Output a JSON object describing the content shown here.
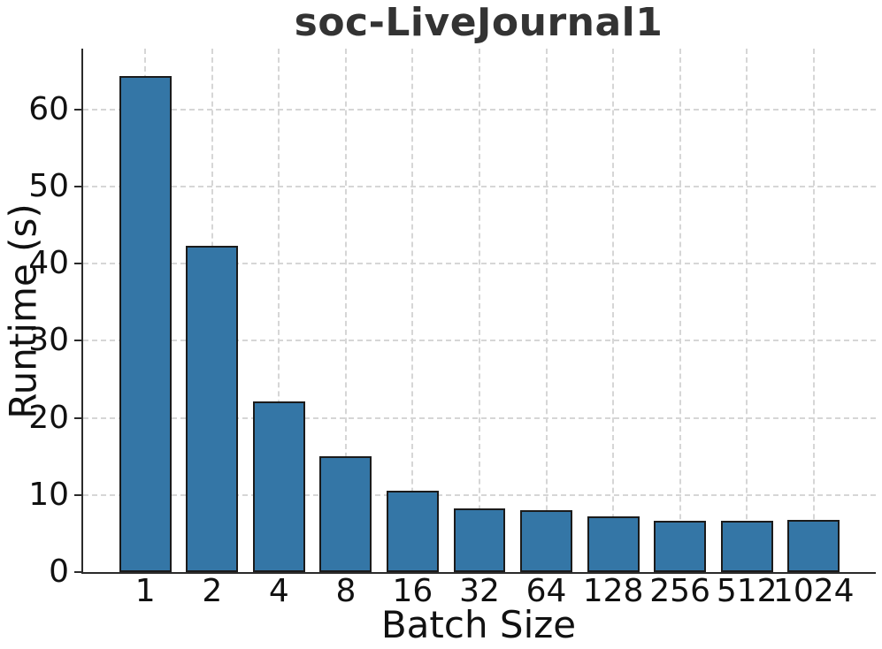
{
  "chart_data": {
    "type": "bar",
    "title": "soc-LiveJournal1",
    "xlabel": "Batch Size",
    "ylabel": "Runtime (s)",
    "categories": [
      "1",
      "2",
      "4",
      "8",
      "16",
      "32",
      "64",
      "128",
      "256",
      "512",
      "1024"
    ],
    "values": [
      64.3,
      42.3,
      22.1,
      15.0,
      10.5,
      8.3,
      8.0,
      7.2,
      6.7,
      6.7,
      6.8
    ],
    "yticks": [
      0,
      10,
      20,
      30,
      40,
      50,
      60
    ],
    "ylim": [
      0,
      67.9
    ],
    "grid": true,
    "grid_style": "dashed",
    "legend": "none",
    "bar_color": "#3476A6",
    "bar_edge_color": "#1b1b1b",
    "axis_color": "#2b2b2b",
    "grid_color": "#d6d6d6",
    "title_color": "#333333",
    "text_color": "#111111"
  }
}
